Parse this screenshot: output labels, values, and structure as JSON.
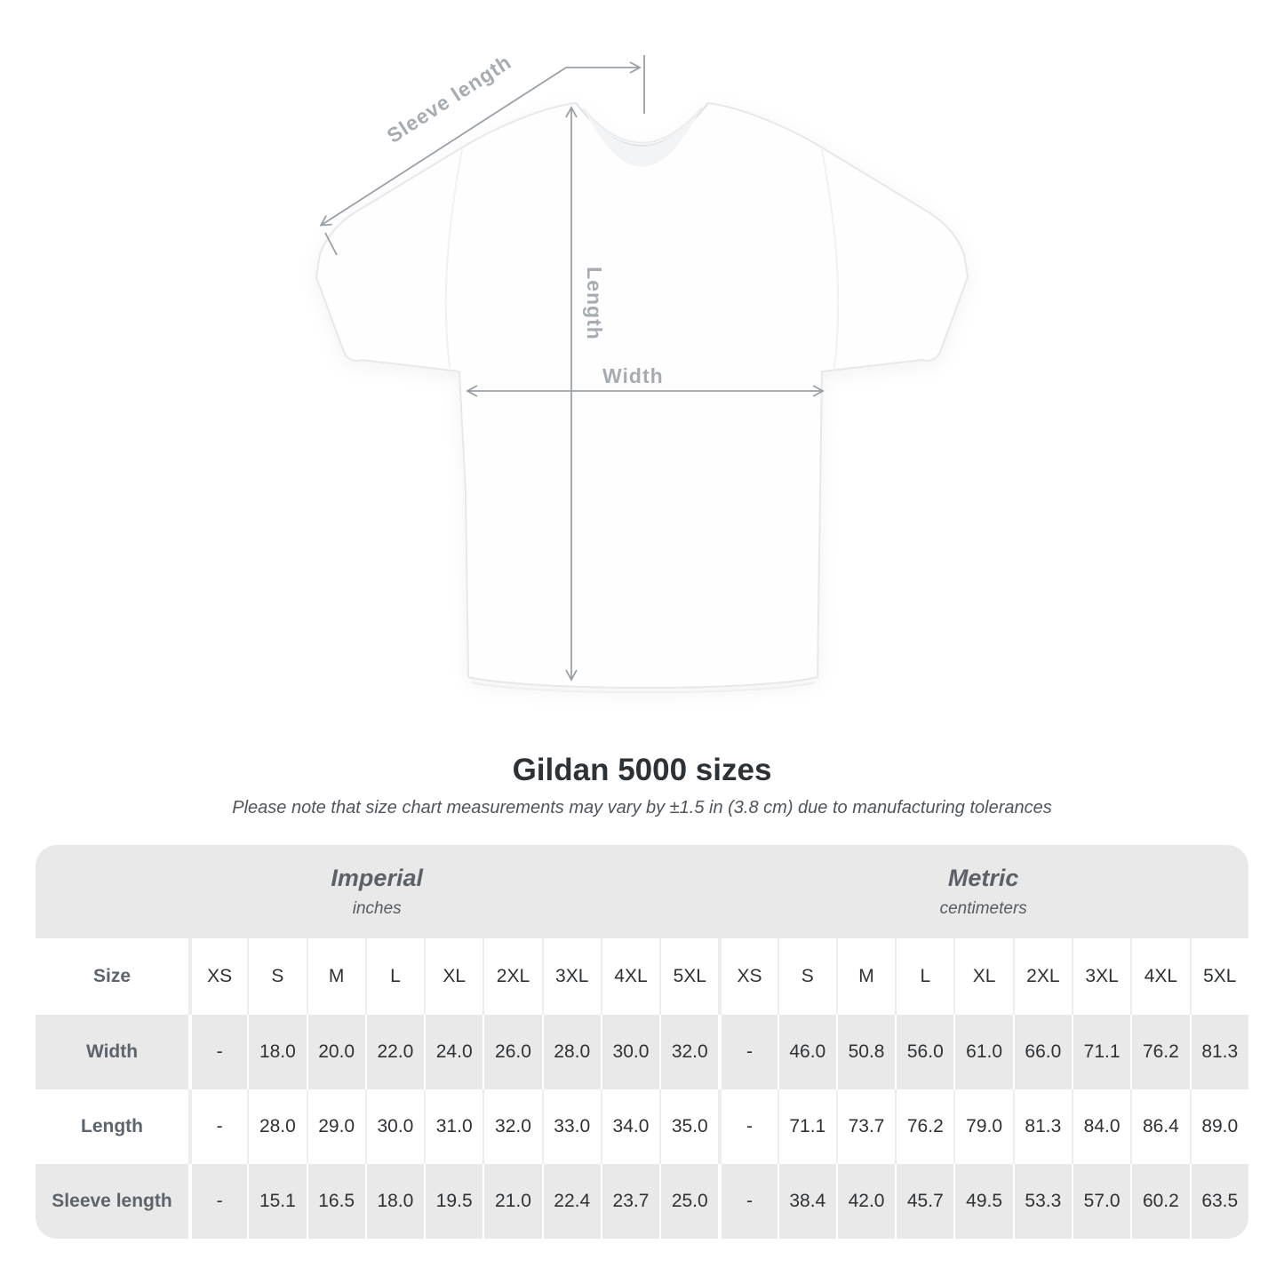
{
  "diagram": {
    "labels": {
      "sleeve_length": "Sleeve length",
      "length": "Length",
      "width": "Width"
    },
    "line_color": "#9aa0a6",
    "label_color": "#a6acb2"
  },
  "title": "Gildan 5000 sizes",
  "subtitle": "Please note that size chart measurements may vary by ±1.5 in (3.8 cm) due to manufacturing tolerances",
  "table": {
    "unit_groups": [
      {
        "name": "Imperial",
        "unit": "inches"
      },
      {
        "name": "Metric",
        "unit": "centimeters"
      }
    ],
    "size_label": "Size",
    "sizes": [
      "XS",
      "S",
      "M",
      "L",
      "XL",
      "2XL",
      "3XL",
      "4XL",
      "5XL"
    ],
    "rows": [
      {
        "label": "Width",
        "imperial": [
          "-",
          "18.0",
          "20.0",
          "22.0",
          "24.0",
          "26.0",
          "28.0",
          "30.0",
          "32.0"
        ],
        "metric": [
          "-",
          "46.0",
          "50.8",
          "56.0",
          "61.0",
          "66.0",
          "71.1",
          "76.2",
          "81.3"
        ]
      },
      {
        "label": "Length",
        "imperial": [
          "-",
          "28.0",
          "29.0",
          "30.0",
          "31.0",
          "32.0",
          "33.0",
          "34.0",
          "35.0"
        ],
        "metric": [
          "-",
          "71.1",
          "73.7",
          "76.2",
          "79.0",
          "81.3",
          "84.0",
          "86.4",
          "89.0"
        ]
      },
      {
        "label": "Sleeve length",
        "imperial": [
          "-",
          "15.1",
          "16.5",
          "18.0",
          "19.5",
          "21.0",
          "22.4",
          "23.7",
          "25.0"
        ],
        "metric": [
          "-",
          "38.4",
          "42.0",
          "45.7",
          "49.5",
          "53.3",
          "57.0",
          "60.2",
          "63.5"
        ]
      }
    ],
    "stripe_color": "#e9e9e9"
  }
}
